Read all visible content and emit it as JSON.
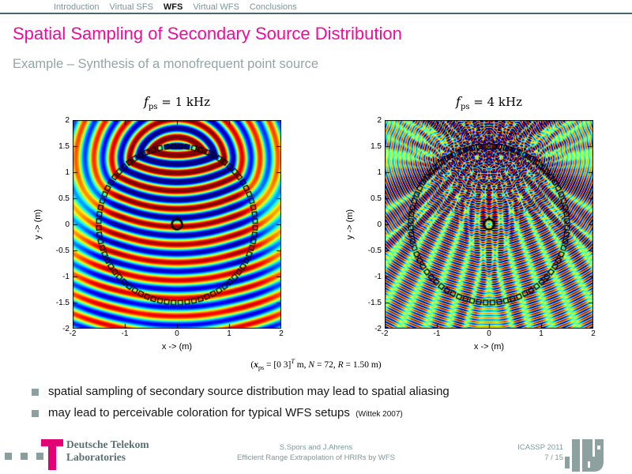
{
  "colors": {
    "title_magenta": "#EE0C9C",
    "telekom_magenta": "#E20074",
    "nav_gray": "#7E9595",
    "subtitle_gray": "#93A5A5",
    "rule_dark_teal": "#476868",
    "bullet_square_gray": "#8CA0A0",
    "footer_text_gray": "#7F9898",
    "logo_gray": "#8DA1A1",
    "plot_zero_level_green": "#80FF80"
  },
  "nav": {
    "items": [
      {
        "label": "Introduction",
        "active": false
      },
      {
        "label": "Virtual SFS",
        "active": false
      },
      {
        "label": "WFS",
        "active": true
      },
      {
        "label": "Virtual WFS",
        "active": false
      },
      {
        "label": "Conclusions",
        "active": false
      }
    ]
  },
  "header": {
    "title": "Spatial Sampling of Secondary Source Distribution",
    "subtitle": "Example – Synthesis of a monofrequent point source"
  },
  "chart_data": {
    "type": "heatmap",
    "common": {
      "xlabel": "x -> (m)",
      "ylabel": "y -> (m)",
      "xlim": [
        -2,
        2
      ],
      "ylim": [
        -2,
        2
      ],
      "x_ticks": [
        -2,
        -1,
        0,
        1,
        2
      ],
      "y_ticks": [
        2,
        1.5,
        1,
        0.5,
        0,
        -0.5,
        -1,
        -1.5,
        -2
      ],
      "colormap": "jet",
      "num_secondary_sources": 72,
      "array_radius_m": 1.5,
      "virtual_source_pos_m": [
        0,
        3
      ]
    },
    "plots": [
      {
        "title_f": "f",
        "title_sub": "ps",
        "title_rhs": " = 1 kHz",
        "frequency_hz": 1000
      },
      {
        "title_f": "f",
        "title_sub": "ps",
        "title_rhs": " = 4 kHz",
        "frequency_hz": 4000
      }
    ]
  },
  "caption": {
    "p1": "(",
    "x": "x",
    "xsub": "ps",
    "p2": " = [0 3]",
    "tsup": "T",
    "p3": " m, ",
    "n": "N",
    "p4": " = 72, ",
    "r": "R",
    "p5": " = 1.50 m)"
  },
  "bullets": [
    {
      "text": "spatial sampling of secondary source distribution may lead to spatial aliasing",
      "cite": ""
    },
    {
      "text": "may lead to perceivable coloration for typical WFS setups",
      "cite": "(Wittek 2007)"
    }
  ],
  "footer": {
    "brand": {
      "line1": "Deutsche Telekom",
      "line2": "Laboratories"
    },
    "center": {
      "authors": "S.Spors and J.Ahrens",
      "paper_title": "Efficient Range Extrapolation of HRIRs by WFS"
    },
    "right": {
      "conference": "ICASSP 2011",
      "page": "7 / 15"
    }
  }
}
